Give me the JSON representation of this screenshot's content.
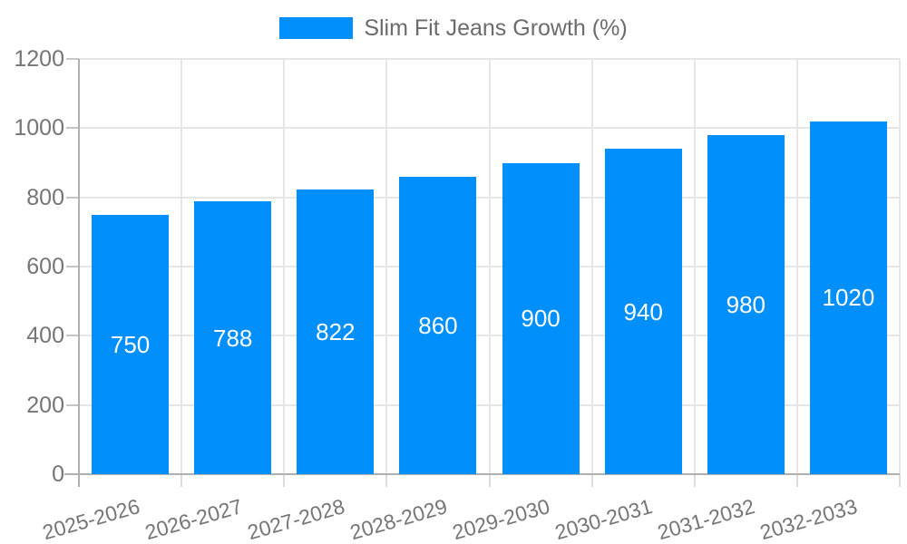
{
  "legend": {
    "series_label": "Slim Fit Jeans Growth (%)"
  },
  "chart_data": {
    "type": "bar",
    "title": "",
    "categories": [
      "2025-2026",
      "2026-2027",
      "2027-2028",
      "2028-2029",
      "2029-2030",
      "2030-2031",
      "2031-2032",
      "2032-2033"
    ],
    "series": [
      {
        "name": "Slim Fit Jeans Growth (%)",
        "values": [
          750,
          788,
          822,
          860,
          900,
          940,
          980,
          1020
        ]
      }
    ],
    "bar_labels": [
      "750",
      "788",
      "822",
      "860",
      "900",
      "940",
      "980",
      "1020"
    ],
    "xlabel": "",
    "ylabel": "",
    "ylim": [
      0,
      1200
    ],
    "yticks": [
      0,
      200,
      400,
      600,
      800,
      1000,
      1200
    ],
    "grid": true,
    "legend_position": "top",
    "x_label_rotation_deg": -16,
    "colors": {
      "bar": "#008FFB",
      "bar_label": "#FFFFFF",
      "axis_text": "#757575",
      "legend_text": "#6B6B6B",
      "gridline": "#E6E6E6",
      "tick": "#C4C4C4",
      "below_tick": "#DCDCDC",
      "axis_line": "#B0B0B0",
      "background": "#FFFFFF"
    }
  }
}
